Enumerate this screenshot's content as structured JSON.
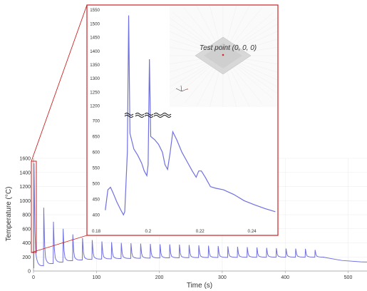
{
  "chart_data": [
    {
      "type": "line",
      "title": "",
      "xlabel": "Time (s)",
      "ylabel": "Temperature (°C)",
      "xlim": [
        0,
        530
      ],
      "ylim": [
        0,
        1600
      ],
      "xticks": [
        "0",
        "100",
        "200",
        "300",
        "400",
        "500"
      ],
      "yticks": [
        "0",
        "200",
        "400",
        "600",
        "800",
        "1000",
        "1200",
        "1400",
        "1600"
      ],
      "grid": true,
      "series": [
        {
          "color": "#7070e0",
          "baseline": [
            [
              0,
              40
            ],
            [
              30,
              105
            ],
            [
              60,
              145
            ],
            [
              90,
              165
            ],
            [
              130,
              175
            ],
            [
              200,
              185
            ],
            [
              260,
              190
            ],
            [
              330,
              195
            ],
            [
              400,
              197
            ],
            [
              460,
              197
            ]
          ],
          "tail": [
            [
              460,
              197
            ],
            [
              490,
              150
            ],
            [
              520,
              130
            ],
            [
              530,
              128
            ]
          ],
          "pulse_period": 15.4,
          "pulse_count": 30,
          "peaks": [
            1530,
            900,
            700,
            600,
            520,
            470,
            440,
            420,
            410,
            400,
            395,
            390,
            385,
            380,
            378,
            375,
            370,
            365,
            360,
            355,
            350,
            345,
            340,
            335,
            330,
            325,
            320,
            318,
            315,
            300
          ]
        }
      ]
    },
    {
      "type": "line",
      "title": "",
      "annotation": "Test point (0, 0, 0)",
      "xlim": [
        0.18,
        0.25
      ],
      "xticks": [
        "0.18",
        "0.2",
        "0.22",
        "0.24"
      ],
      "xtick_values": [
        0.18,
        0.2,
        0.22,
        0.24
      ],
      "y_lower_range": [
        380,
        710
      ],
      "y_upper_range": [
        1190,
        1555
      ],
      "y_lower_ticks": [
        "400",
        "450",
        "500",
        "550",
        "600",
        "650",
        "700"
      ],
      "y_upper_ticks": [
        "1200",
        "1250",
        "1300",
        "1350",
        "1400",
        "1450",
        "1500",
        "1550"
      ],
      "axis_break": true,
      "series": [
        {
          "color": "#7070e0",
          "points": [
            [
              0.1835,
              415
            ],
            [
              0.1845,
              480
            ],
            [
              0.1855,
              488
            ],
            [
              0.1865,
              470
            ],
            [
              0.188,
              440
            ],
            [
              0.1895,
              415
            ],
            [
              0.1905,
              400
            ],
            [
              0.191,
              410
            ],
            [
              0.192,
              600
            ],
            [
              0.1925,
              1530
            ],
            [
              0.193,
              660
            ],
            [
              0.1945,
              610
            ],
            [
              0.196,
              590
            ],
            [
              0.1975,
              565
            ],
            [
              0.1985,
              540
            ],
            [
              0.1995,
              525
            ],
            [
              0.2,
              560
            ],
            [
              0.2005,
              1370
            ],
            [
              0.201,
              650
            ],
            [
              0.2025,
              640
            ],
            [
              0.204,
              625
            ],
            [
              0.2055,
              600
            ],
            [
              0.2065,
              560
            ],
            [
              0.2075,
              545
            ],
            [
              0.2085,
              600
            ],
            [
              0.2095,
              665
            ],
            [
              0.211,
              640
            ],
            [
              0.213,
              600
            ],
            [
              0.215,
              570
            ],
            [
              0.217,
              540
            ],
            [
              0.2185,
              520
            ],
            [
              0.2195,
              540
            ],
            [
              0.2205,
              540
            ],
            [
              0.222,
              520
            ],
            [
              0.224,
              490
            ],
            [
              0.226,
              485
            ],
            [
              0.229,
              480
            ],
            [
              0.233,
              465
            ],
            [
              0.237,
              445
            ],
            [
              0.241,
              432
            ],
            [
              0.245,
              420
            ],
            [
              0.249,
              410
            ]
          ]
        }
      ]
    }
  ]
}
